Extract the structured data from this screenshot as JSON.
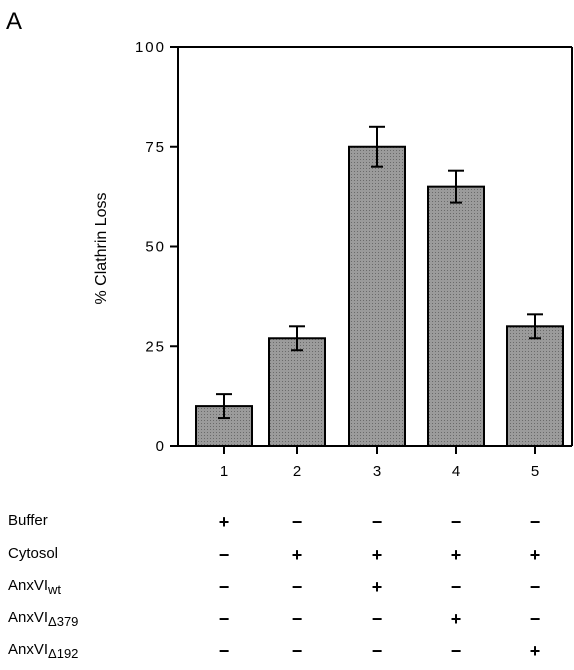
{
  "panel_label": "A",
  "chart_data": {
    "type": "bar",
    "title": "",
    "xlabel": "",
    "ylabel": "% Clathrin Loss",
    "ylim": [
      0,
      100
    ],
    "yticks": [
      0,
      25,
      50,
      75,
      100
    ],
    "ytick_labels": [
      "0",
      "25",
      "50",
      "75",
      "100"
    ],
    "categories": [
      "1",
      "2",
      "3",
      "4",
      "5"
    ],
    "values": [
      10,
      27,
      75,
      65,
      30
    ],
    "errors": [
      3,
      3,
      5,
      4,
      3
    ],
    "grid": false,
    "legend": "none",
    "bar_color": "#9b9b9b"
  },
  "conditions": {
    "rows": [
      {
        "label": "Buffer",
        "sub": "",
        "values": [
          "+",
          "−",
          "−",
          "−",
          "−"
        ]
      },
      {
        "label": "Cytosol",
        "sub": "",
        "values": [
          "−",
          "+",
          "+",
          "+",
          "+"
        ]
      },
      {
        "label": "AnxVI",
        "sub": "wt",
        "values": [
          "−",
          "−",
          "+",
          "−",
          "−"
        ]
      },
      {
        "label": "AnxVI",
        "sub": "Δ379",
        "values": [
          "−",
          "−",
          "−",
          "+",
          "−"
        ]
      },
      {
        "label": "AnxVI",
        "sub": "Δ192",
        "values": [
          "−",
          "−",
          "−",
          "−",
          "+"
        ]
      }
    ]
  }
}
